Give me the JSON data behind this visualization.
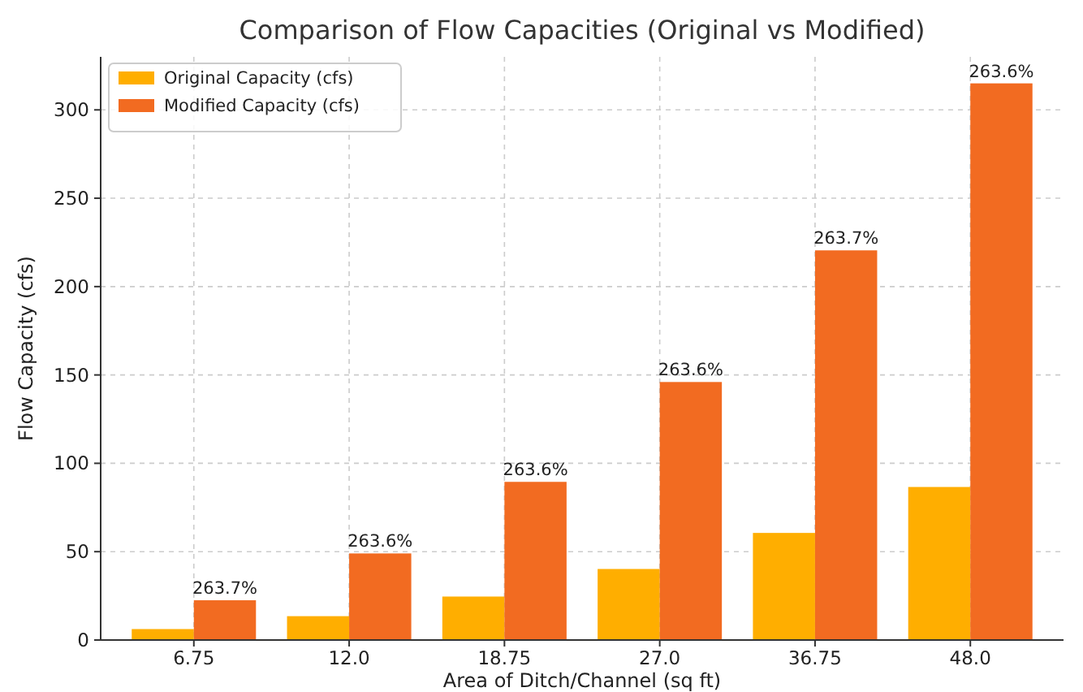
{
  "chart_data": {
    "type": "bar",
    "title": "Comparison of Flow Capacities (Original vs Modified)",
    "xlabel": "Area of Ditch/Channel (sq ft)",
    "ylabel": "Flow Capacity (cfs)",
    "categories": [
      "6.75",
      "12.0",
      "18.75",
      "27.0",
      "36.75",
      "48.0"
    ],
    "series": [
      {
        "name": "Original Capacity (cfs)",
        "color": "#ffae00",
        "values": [
          6.2,
          13.5,
          24.6,
          40.2,
          60.6,
          86.6
        ]
      },
      {
        "name": "Modified Capacity (cfs)",
        "color": "#f26b21",
        "values": [
          22.5,
          49,
          89.5,
          146,
          220.5,
          315
        ]
      }
    ],
    "annotations": [
      {
        "text": "263.7%",
        "x": "6.75",
        "y": 22.5
      },
      {
        "text": "263.6%",
        "x": "12.0",
        "y": 49
      },
      {
        "text": "263.6%",
        "x": "18.75",
        "y": 89.5
      },
      {
        "text": "263.6%",
        "x": "27.0",
        "y": 146
      },
      {
        "text": "263.7%",
        "x": "36.75",
        "y": 220.5
      },
      {
        "text": "263.6%",
        "x": "48.0",
        "y": 315
      }
    ],
    "ylim": [
      0,
      330
    ],
    "yticks": [
      0,
      50,
      100,
      150,
      200,
      250,
      300
    ],
    "grid": true,
    "legend": "top left"
  }
}
